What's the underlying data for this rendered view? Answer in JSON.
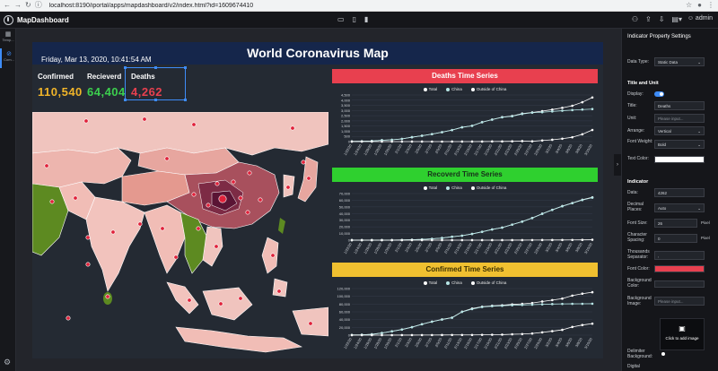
{
  "browser": {
    "url": "localhost:8190/iportal/apps/mapdashboard/v2/index.html?id=1609674410"
  },
  "app": {
    "title": "MapDashboard",
    "user": "admin"
  },
  "leftbar": {
    "items": [
      {
        "label": "Temp..."
      },
      {
        "label": "Com..."
      }
    ]
  },
  "dashboard": {
    "title": "World Coronavirus Map",
    "datetime": "Friday, Mar 13, 2020, 10:41:54 AM",
    "stats": [
      {
        "label": "Confirmed",
        "value": "110,540",
        "color": "#f0b429"
      },
      {
        "label": "Recieverd",
        "value": "64,404",
        "color": "#3ccf4e"
      },
      {
        "label": "Deaths",
        "value": "4,262",
        "color": "#e8404f"
      }
    ]
  },
  "charts": {
    "deaths": {
      "title": "Deaths Time Series",
      "color": "#e8404f"
    },
    "recovered": {
      "title": "Recoverd Time Series",
      "color": "#2fd02f"
    },
    "confirmed": {
      "title": "Confirmed Time Series",
      "color": "#f0c030"
    },
    "legend": [
      "Total",
      "China",
      "Outside of China"
    ]
  },
  "chart_data": [
    {
      "type": "line",
      "title": "Deaths Time Series",
      "y_ticks": [
        "4,500",
        "4,000",
        "3,500",
        "3,000",
        "2,500",
        "2,000",
        "1,500",
        "1,000",
        "500",
        "0"
      ],
      "ylim": [
        0,
        4500
      ],
      "x": [
        "1/22/20",
        "1/24/20",
        "1/26/20",
        "1/28/20",
        "1/30/20",
        "2/1/20",
        "2/3/20",
        "2/5/20",
        "2/7/20",
        "2/9/20",
        "2/11/20",
        "2/13/20",
        "2/15/20",
        "2/17/20",
        "2/19/20",
        "2/21/20",
        "2/23/20",
        "2/25/20",
        "2/27/20",
        "2/29/20",
        "3/2/20",
        "3/4/20",
        "3/6/20",
        "3/8/20",
        "3/10/20"
      ],
      "series": [
        {
          "name": "Total",
          "values": [
            17,
            26,
            56,
            132,
            171,
            259,
            427,
            564,
            723,
            909,
            1115,
            1383,
            1526,
            1873,
            2131,
            2361,
            2470,
            2708,
            2814,
            2941,
            3087,
            3259,
            3460,
            3802,
            4262
          ]
        },
        {
          "name": "China",
          "values": [
            17,
            26,
            56,
            131,
            170,
            258,
            425,
            562,
            722,
            908,
            1113,
            1380,
            1523,
            1868,
            2118,
            2345,
            2445,
            2663,
            2788,
            2835,
            2912,
            2981,
            3042,
            3097,
            3140
          ]
        },
        {
          "name": "Outside of China",
          "values": [
            0,
            0,
            0,
            1,
            1,
            1,
            2,
            2,
            1,
            1,
            2,
            3,
            3,
            5,
            13,
            16,
            25,
            45,
            26,
            106,
            175,
            278,
            418,
            705,
            1122
          ]
        }
      ]
    },
    {
      "type": "line",
      "title": "Recoverd Time Series",
      "y_ticks": [
        "70,000",
        "60,000",
        "50,000",
        "40,000",
        "30,000",
        "20,000",
        "10,000",
        "0"
      ],
      "ylim": [
        0,
        70000
      ],
      "x": [
        "1/22/20",
        "1/24/20",
        "1/26/20",
        "1/28/20",
        "1/30/20",
        "2/1/20",
        "2/3/20",
        "2/5/20",
        "2/7/20",
        "2/9/20",
        "2/11/20",
        "2/13/20",
        "2/15/20",
        "2/17/20",
        "2/19/20",
        "2/21/20",
        "2/23/20",
        "2/25/20",
        "2/27/20",
        "2/29/20",
        "3/2/20",
        "3/4/20",
        "3/6/20",
        "3/8/20",
        "3/10/20"
      ],
      "series": [
        {
          "name": "Total",
          "values": [
            28,
            36,
            52,
            107,
            143,
            284,
            624,
            1124,
            2011,
            3244,
            5150,
            6723,
            9395,
            12583,
            16121,
            18890,
            23394,
            27904,
            33277,
            39782,
            45602,
            51171,
            55866,
            60695,
            64404
          ]
        },
        {
          "name": "China",
          "values": [
            28,
            36,
            52,
            107,
            141,
            280,
            616,
            1111,
            1995,
            3226,
            5123,
            6690,
            9361,
            12552,
            16088,
            18843,
            23326,
            27820,
            33153,
            39594,
            45373,
            50899,
            55533,
            60300,
            63810
          ]
        },
        {
          "name": "Outside of China",
          "values": [
            0,
            0,
            0,
            0,
            2,
            4,
            8,
            13,
            16,
            18,
            27,
            33,
            34,
            31,
            33,
            47,
            68,
            84,
            124,
            188,
            229,
            272,
            333,
            395,
            594
          ]
        }
      ]
    },
    {
      "type": "line",
      "title": "Confirmed Time Series",
      "y_ticks": [
        "120,000",
        "100,000",
        "80,000",
        "60,000",
        "40,000",
        "20,000",
        "0"
      ],
      "ylim": [
        0,
        120000
      ],
      "x": [
        "1/22/20",
        "1/24/20",
        "1/26/20",
        "1/28/20",
        "1/30/20",
        "2/1/20",
        "2/3/20",
        "2/5/20",
        "2/7/20",
        "2/9/20",
        "2/11/20",
        "2/13/20",
        "2/15/20",
        "2/17/20",
        "2/19/20",
        "2/21/20",
        "2/23/20",
        "2/25/20",
        "2/27/20",
        "2/29/20",
        "3/2/20",
        "3/4/20",
        "3/6/20",
        "3/8/20",
        "3/10/20"
      ],
      "series": [
        {
          "name": "Total",
          "values": [
            555,
            941,
            2118,
            5578,
            9927,
            14557,
            20630,
            28274,
            34878,
            40554,
            45211,
            60373,
            68593,
            73331,
            75650,
            76888,
            79184,
            80561,
            82779,
            86604,
            90309,
            94080,
            101800,
            106800,
            110540
          ]
        },
        {
          "name": "China",
          "values": [
            548,
            920,
            2070,
            5509,
            9802,
            14380,
            20438,
            28060,
            34596,
            40171,
            44712,
            59865,
            67096,
            72445,
            74576,
            75567,
            76936,
            77754,
            78501,
            79394,
            80026,
            80422,
            80651,
            80735,
            80921
          ]
        },
        {
          "name": "Outside of China",
          "values": [
            7,
            21,
            48,
            69,
            125,
            177,
            192,
            214,
            282,
            383,
            499,
            508,
            497,
            886,
            1074,
            1321,
            2248,
            2807,
            4278,
            7210,
            10283,
            13658,
            21149,
            26065,
            29619
          ]
        }
      ]
    }
  ],
  "props": {
    "title": "Indicator Property Settings",
    "data_type_label": "Data Type:",
    "data_type_value": "Static Data",
    "section_title_unit": "Title and Unit",
    "display_label": "Display:",
    "title_label": "Title:",
    "title_value": "Deaths",
    "unit_label": "Unit:",
    "unit_placeholder": "Please input...",
    "arrange_label": "Arrange:",
    "arrange_value": "Vertical",
    "font_weight_label": "Font Weight:",
    "font_weight_value": "Bold",
    "text_color_label": "Text Color:",
    "section_indicator": "Indicator",
    "data_label": "Data:",
    "data_value": "4262",
    "decimal_label": "Decimal Places:",
    "decimal_value": "Auto",
    "font_size_label": "Font Size:",
    "font_size_value": "26",
    "pixel1": "Pixel",
    "char_spacing_label": "Character Spacing:",
    "char_spacing_value": "0",
    "pixel2": "Pixel",
    "thousands_label": "Thousands Separator:",
    "thousands_value": ",",
    "font_color_label": "Font Color:",
    "bg_color_label": "Background Color:",
    "bg_image_label": "Background Image:",
    "bg_image_placeholder": "Please input...",
    "add_image_label": "Click to add image",
    "delimiter_label": "Delimiter Background:",
    "digital_label": "Digital"
  }
}
